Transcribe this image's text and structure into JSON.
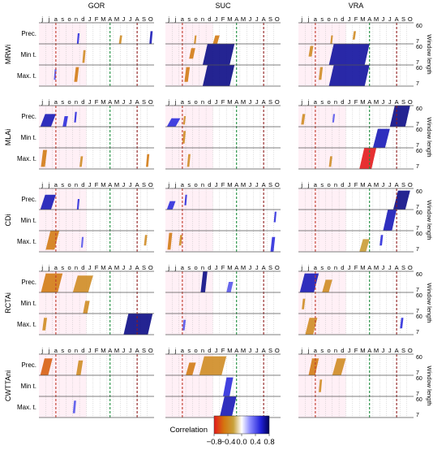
{
  "chart_data": {
    "type": "heatmap",
    "sites": [
      "GOR",
      "SUC",
      "VRA"
    ],
    "indices": [
      "MRWi",
      "MLAi",
      "CDi",
      "RCTAi",
      "CWTTAni"
    ],
    "variables": [
      "Prec.",
      "Min t.",
      "Max. t."
    ],
    "months": [
      "j",
      "j",
      "a",
      "s",
      "o",
      "n",
      "d",
      "J",
      "F",
      "M",
      "A",
      "M",
      "J",
      "J",
      "A",
      "S",
      "O"
    ],
    "window_ticks": [
      "60",
      "7"
    ],
    "y_axis_label": "Window length",
    "colorbar": {
      "label": "Correlation",
      "ticks": [
        "−0.8",
        "−0.4",
        "0.0",
        "0.4",
        "0.8"
      ],
      "range": [
        -0.8,
        0.8
      ],
      "colors": [
        "#e41a1c",
        "#d4760f",
        "#c9a13b",
        "#ffffff",
        "#8c8cff",
        "#2020d8",
        "#000055"
      ]
    },
    "reference_lines": [
      {
        "month_index": 2,
        "color": "#c0392b"
      },
      {
        "month_index": 10,
        "color": "#1e8e3e"
      },
      {
        "month_index": 14,
        "color": "#8e1b1b"
      }
    ],
    "blobs": [
      {
        "row": 0,
        "col": 0,
        "v": 0,
        "m0": 5.6,
        "m1": 6.0,
        "w0": 0.0,
        "w1": 0.5,
        "c": 0.5
      },
      {
        "row": 0,
        "col": 0,
        "v": 0,
        "m0": 11.8,
        "m1": 12.3,
        "w0": 0.0,
        "w1": 0.4,
        "c": -0.4
      },
      {
        "row": 0,
        "col": 0,
        "v": 0,
        "m0": 16.3,
        "m1": 16.8,
        "w0": 0.0,
        "w1": 0.6,
        "c": 0.6
      },
      {
        "row": 0,
        "col": 0,
        "v": 1,
        "m0": 6.4,
        "m1": 6.9,
        "w0": 0.1,
        "w1": 0.7,
        "c": -0.4
      },
      {
        "row": 0,
        "col": 0,
        "v": 2,
        "m0": 5.2,
        "m1": 5.9,
        "w0": 0.2,
        "w1": 0.9,
        "c": -0.5
      },
      {
        "row": 0,
        "col": 0,
        "v": 2,
        "m0": 2.2,
        "m1": 2.6,
        "w0": 0.3,
        "w1": 0.8,
        "c": 0.4
      },
      {
        "row": 0,
        "col": 1,
        "v": 0,
        "m0": 4.2,
        "m1": 4.6,
        "w0": 0.0,
        "w1": 0.4,
        "c": -0.4
      },
      {
        "row": 0,
        "col": 1,
        "v": 0,
        "m0": 7.0,
        "m1": 8.0,
        "w0": 0.0,
        "w1": 0.4,
        "c": -0.5
      },
      {
        "row": 0,
        "col": 1,
        "v": 1,
        "m0": 5.5,
        "m1": 10.2,
        "w0": 0.0,
        "w1": 1.0,
        "c": 0.7
      },
      {
        "row": 0,
        "col": 1,
        "v": 1,
        "m0": 3.5,
        "m1": 4.4,
        "w0": 0.3,
        "w1": 0.8,
        "c": -0.5
      },
      {
        "row": 0,
        "col": 1,
        "v": 2,
        "m0": 5.5,
        "m1": 10.2,
        "w0": 0.0,
        "w1": 1.0,
        "c": 0.7
      },
      {
        "row": 0,
        "col": 1,
        "v": 2,
        "m0": 2.8,
        "m1": 3.6,
        "w0": 0.2,
        "w1": 0.9,
        "c": -0.5
      },
      {
        "row": 0,
        "col": 2,
        "v": 0,
        "m0": 4.7,
        "m1": 5.1,
        "w0": 0.0,
        "w1": 0.4,
        "c": -0.4
      },
      {
        "row": 0,
        "col": 2,
        "v": 0,
        "m0": 8.0,
        "m1": 8.5,
        "w0": 0.2,
        "w1": 0.6,
        "c": -0.4
      },
      {
        "row": 0,
        "col": 2,
        "v": 1,
        "m0": 4.5,
        "m1": 10.5,
        "w0": 0.0,
        "w1": 1.0,
        "c": 0.65
      },
      {
        "row": 0,
        "col": 2,
        "v": 1,
        "m0": 1.5,
        "m1": 2.2,
        "w0": 0.4,
        "w1": 0.9,
        "c": -0.4
      },
      {
        "row": 0,
        "col": 2,
        "v": 2,
        "m0": 4.5,
        "m1": 10.5,
        "w0": 0.0,
        "w1": 1.0,
        "c": 0.65
      },
      {
        "row": 0,
        "col": 2,
        "v": 2,
        "m0": 3.0,
        "m1": 3.6,
        "w0": 0.3,
        "w1": 0.9,
        "c": -0.4
      },
      {
        "row": 1,
        "col": 0,
        "v": 0,
        "m0": 0.2,
        "m1": 2.5,
        "w0": 0.0,
        "w1": 0.6,
        "c": 0.6
      },
      {
        "row": 1,
        "col": 0,
        "v": 0,
        "m0": 3.5,
        "m1": 4.3,
        "w0": 0.0,
        "w1": 0.5,
        "c": 0.5
      },
      {
        "row": 1,
        "col": 0,
        "v": 0,
        "m0": 5.2,
        "m1": 5.6,
        "w0": 0.2,
        "w1": 0.7,
        "c": 0.5
      },
      {
        "row": 1,
        "col": 0,
        "v": 2,
        "m0": 0.3,
        "m1": 1.2,
        "w0": 0.1,
        "w1": 0.9,
        "c": -0.5
      },
      {
        "row": 1,
        "col": 0,
        "v": 2,
        "m0": 6.0,
        "m1": 6.5,
        "w0": 0.1,
        "w1": 0.6,
        "c": -0.4
      },
      {
        "row": 1,
        "col": 0,
        "v": 2,
        "m0": 15.8,
        "m1": 16.3,
        "w0": 0.1,
        "w1": 0.7,
        "c": -0.5
      },
      {
        "row": 1,
        "col": 1,
        "v": 0,
        "m0": 0.2,
        "m1": 2.2,
        "w0": 0.0,
        "w1": 0.4,
        "c": 0.5
      },
      {
        "row": 1,
        "col": 1,
        "v": 0,
        "m0": 2.6,
        "m1": 3.0,
        "w0": 0.1,
        "w1": 0.5,
        "c": -0.4
      },
      {
        "row": 1,
        "col": 1,
        "v": 1,
        "m0": 2.5,
        "m1": 3.0,
        "w0": 0.2,
        "w1": 0.8,
        "c": -0.4
      },
      {
        "row": 1,
        "col": 1,
        "v": 2,
        "m0": 3.2,
        "m1": 3.7,
        "w0": 0.1,
        "w1": 0.7,
        "c": -0.4
      },
      {
        "row": 1,
        "col": 2,
        "v": 0,
        "m0": 13.5,
        "m1": 16.5,
        "w0": 0.0,
        "w1": 1.0,
        "c": 0.7
      },
      {
        "row": 1,
        "col": 2,
        "v": 0,
        "m0": 0.4,
        "m1": 1.0,
        "w0": 0.1,
        "w1": 0.6,
        "c": -0.4
      },
      {
        "row": 1,
        "col": 2,
        "v": 0,
        "m0": 5.0,
        "m1": 5.4,
        "w0": 0.2,
        "w1": 0.6,
        "c": 0.4
      },
      {
        "row": 1,
        "col": 2,
        "v": 1,
        "m0": 11.0,
        "m1": 13.5,
        "w0": 0.0,
        "w1": 0.9,
        "c": 0.6
      },
      {
        "row": 1,
        "col": 2,
        "v": 2,
        "m0": 9.0,
        "m1": 11.5,
        "w0": 0.0,
        "w1": 1.0,
        "c": -0.8
      },
      {
        "row": 1,
        "col": 2,
        "v": 2,
        "m0": 4.5,
        "m1": 5.0,
        "w0": 0.1,
        "w1": 0.6,
        "c": -0.4
      },
      {
        "row": 2,
        "col": 0,
        "v": 0,
        "m0": 0.2,
        "m1": 2.5,
        "w0": 0.0,
        "w1": 0.7,
        "c": 0.6
      },
      {
        "row": 2,
        "col": 0,
        "v": 0,
        "m0": 5.6,
        "m1": 6.0,
        "w0": 0.0,
        "w1": 0.5,
        "c": 0.5
      },
      {
        "row": 2,
        "col": 0,
        "v": 2,
        "m0": 1.0,
        "m1": 3.0,
        "w0": 0.1,
        "w1": 1.0,
        "c": -0.5
      },
      {
        "row": 2,
        "col": 0,
        "v": 2,
        "m0": 15.5,
        "m1": 16.0,
        "w0": 0.3,
        "w1": 0.8,
        "c": -0.4
      },
      {
        "row": 2,
        "col": 0,
        "v": 2,
        "m0": 6.2,
        "m1": 6.6,
        "w0": 0.2,
        "w1": 0.7,
        "c": 0.4
      },
      {
        "row": 2,
        "col": 1,
        "v": 0,
        "m0": 0.2,
        "m1": 1.5,
        "w0": 0.0,
        "w1": 0.4,
        "c": 0.5
      },
      {
        "row": 2,
        "col": 1,
        "v": 0,
        "m0": 2.8,
        "m1": 3.2,
        "w0": 0.2,
        "w1": 0.7,
        "c": 0.5
      },
      {
        "row": 2,
        "col": 1,
        "v": 1,
        "m0": 16.0,
        "m1": 16.4,
        "w0": 0.4,
        "w1": 0.9,
        "c": 0.5
      },
      {
        "row": 2,
        "col": 1,
        "v": 2,
        "m0": 0.3,
        "m1": 1.0,
        "w0": 0.1,
        "w1": 0.9,
        "c": -0.5
      },
      {
        "row": 2,
        "col": 1,
        "v": 2,
        "m0": 2.0,
        "m1": 2.5,
        "w0": 0.3,
        "w1": 0.8,
        "c": -0.4
      },
      {
        "row": 2,
        "col": 1,
        "v": 2,
        "m0": 15.5,
        "m1": 16.2,
        "w0": 0.0,
        "w1": 0.7,
        "c": 0.5
      },
      {
        "row": 2,
        "col": 2,
        "v": 0,
        "m0": 14.0,
        "m1": 16.5,
        "w0": 0.0,
        "w1": 0.9,
        "c": 0.7
      },
      {
        "row": 2,
        "col": 2,
        "v": 1,
        "m0": 12.5,
        "m1": 14.5,
        "w0": 0.0,
        "w1": 1.0,
        "c": 0.6
      },
      {
        "row": 2,
        "col": 2,
        "v": 2,
        "m0": 9.0,
        "m1": 10.5,
        "w0": 0.0,
        "w1": 0.6,
        "c": -0.3
      },
      {
        "row": 2,
        "col": 2,
        "v": 2,
        "m0": 12.0,
        "m1": 12.5,
        "w0": 0.3,
        "w1": 0.8,
        "c": 0.5
      },
      {
        "row": 3,
        "col": 0,
        "v": 0,
        "m0": 0.3,
        "m1": 3.5,
        "w0": 0.0,
        "w1": 0.9,
        "c": -0.5
      },
      {
        "row": 3,
        "col": 0,
        "v": 0,
        "m0": 5.0,
        "m1": 8.0,
        "w0": 0.0,
        "w1": 0.8,
        "c": -0.4
      },
      {
        "row": 3,
        "col": 0,
        "v": 1,
        "m0": 6.5,
        "m1": 7.5,
        "w0": 0.0,
        "w1": 0.6,
        "c": -0.4
      },
      {
        "row": 3,
        "col": 0,
        "v": 2,
        "m0": 12.5,
        "m1": 16.8,
        "w0": 0.0,
        "w1": 1.0,
        "c": 0.7
      },
      {
        "row": 3,
        "col": 0,
        "v": 2,
        "m0": 0.5,
        "m1": 1.2,
        "w0": 0.2,
        "w1": 0.8,
        "c": -0.4
      },
      {
        "row": 3,
        "col": 1,
        "v": 0,
        "m0": 5.2,
        "m1": 6.2,
        "w0": 0.0,
        "w1": 1.0,
        "c": 0.7
      },
      {
        "row": 3,
        "col": 1,
        "v": 0,
        "m0": 9.0,
        "m1": 10.0,
        "w0": 0.0,
        "w1": 0.5,
        "c": 0.4
      },
      {
        "row": 3,
        "col": 1,
        "v": 2,
        "m0": 2.5,
        "m1": 3.0,
        "w0": 0.2,
        "w1": 0.7,
        "c": 0.4
      },
      {
        "row": 3,
        "col": 2,
        "v": 0,
        "m0": 0.2,
        "m1": 3.0,
        "w0": 0.0,
        "w1": 0.9,
        "c": 0.6
      },
      {
        "row": 3,
        "col": 2,
        "v": 0,
        "m0": 3.5,
        "m1": 5.0,
        "w0": 0.0,
        "w1": 0.6,
        "c": -0.4
      },
      {
        "row": 3,
        "col": 2,
        "v": 1,
        "m0": 0.5,
        "m1": 1.0,
        "w0": 0.2,
        "w1": 0.7,
        "c": -0.4
      },
      {
        "row": 3,
        "col": 2,
        "v": 2,
        "m0": 1.0,
        "m1": 2.8,
        "w0": 0.0,
        "w1": 0.8,
        "c": -0.4
      },
      {
        "row": 3,
        "col": 2,
        "v": 2,
        "m0": 15.0,
        "m1": 15.5,
        "w0": 0.3,
        "w1": 0.8,
        "c": 0.5
      },
      {
        "row": 4,
        "col": 0,
        "v": 0,
        "m0": 0.2,
        "m1": 2.0,
        "w0": 0.0,
        "w1": 0.8,
        "c": -0.6
      },
      {
        "row": 4,
        "col": 0,
        "v": 0,
        "m0": 5.5,
        "m1": 6.5,
        "w0": 0.0,
        "w1": 0.7,
        "c": -0.4
      },
      {
        "row": 4,
        "col": 0,
        "v": 2,
        "m0": 5.0,
        "m1": 5.5,
        "w0": 0.2,
        "w1": 0.8,
        "c": 0.4
      },
      {
        "row": 4,
        "col": 1,
        "v": 0,
        "m0": 3.0,
        "m1": 4.5,
        "w0": 0.0,
        "w1": 0.6,
        "c": -0.5
      },
      {
        "row": 4,
        "col": 1,
        "v": 0,
        "m0": 5.0,
        "m1": 9.0,
        "w0": 0.0,
        "w1": 0.9,
        "c": -0.4
      },
      {
        "row": 4,
        "col": 1,
        "v": 1,
        "m0": 8.5,
        "m1": 10.0,
        "w0": 0.0,
        "w1": 0.9,
        "c": 0.5
      },
      {
        "row": 4,
        "col": 1,
        "v": 2,
        "m0": 8.0,
        "m1": 10.5,
        "w0": 0.0,
        "w1": 1.0,
        "c": 0.6
      },
      {
        "row": 4,
        "col": 2,
        "v": 0,
        "m0": 1.5,
        "m1": 3.0,
        "w0": 0.0,
        "w1": 0.8,
        "c": -0.5
      },
      {
        "row": 4,
        "col": 2,
        "v": 0,
        "m0": 5.0,
        "m1": 7.0,
        "w0": 0.0,
        "w1": 0.8,
        "c": -0.4
      },
      {
        "row": 4,
        "col": 2,
        "v": 1,
        "m0": 3.0,
        "m1": 3.5,
        "w0": 0.2,
        "w1": 0.8,
        "c": -0.4
      }
    ]
  }
}
